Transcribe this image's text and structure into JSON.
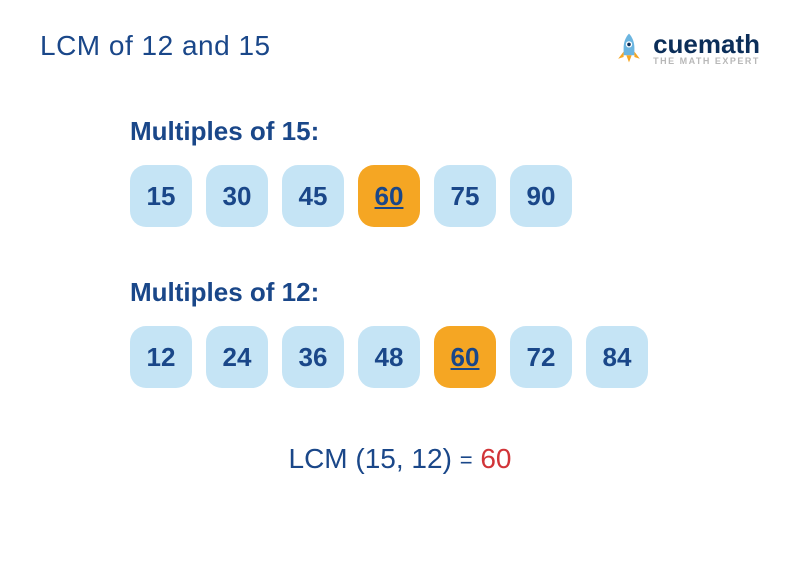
{
  "title": "LCM of 12 and 15",
  "logo": {
    "main": "cuemath",
    "sub": "THE MATH EXPERT"
  },
  "sections": [
    {
      "label": "Multiples of 15:",
      "chips": [
        {
          "value": "15",
          "highlight": false
        },
        {
          "value": "30",
          "highlight": false
        },
        {
          "value": "45",
          "highlight": false
        },
        {
          "value": "60",
          "highlight": true
        },
        {
          "value": "75",
          "highlight": false
        },
        {
          "value": "90",
          "highlight": false
        }
      ]
    },
    {
      "label": "Multiples of 12:",
      "chips": [
        {
          "value": "12",
          "highlight": false
        },
        {
          "value": "24",
          "highlight": false
        },
        {
          "value": "36",
          "highlight": false
        },
        {
          "value": "48",
          "highlight": false
        },
        {
          "value": "60",
          "highlight": true
        },
        {
          "value": "72",
          "highlight": false
        },
        {
          "value": "84",
          "highlight": false
        }
      ]
    }
  ],
  "result": {
    "label": "LCM (15, 12)",
    "eq": "=",
    "value": "60"
  },
  "colors": {
    "text_primary": "#1a4789",
    "chip_bg": "#c5e4f5",
    "chip_highlight": "#f5a623",
    "result_value": "#d13438",
    "logo_text": "#0b2e59",
    "logo_sub": "#b8b8b8"
  },
  "rocket_colors": {
    "body": "#6bb5e0",
    "flame": "#f5a623",
    "window": "#ffffff"
  }
}
